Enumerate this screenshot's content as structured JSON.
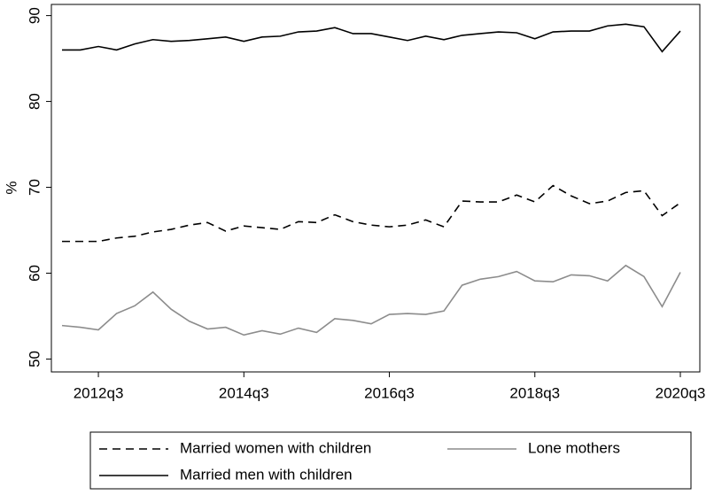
{
  "chart_data": {
    "type": "line",
    "y_label": "%",
    "categories": [
      null,
      null,
      "2012q3",
      null,
      null,
      null,
      null,
      null,
      null,
      null,
      "2014q3",
      null,
      null,
      null,
      null,
      null,
      null,
      null,
      "2016q3",
      null,
      null,
      null,
      null,
      null,
      null,
      null,
      "2018q3",
      null,
      null,
      null,
      null,
      null,
      null,
      null,
      "2020q3"
    ],
    "series": [
      {
        "name": "Married women with children",
        "color": "#000000",
        "line_style": "dashed",
        "values": [
          63.7,
          63.7,
          63.7,
          64.1,
          64.3,
          64.8,
          65.1,
          65.6,
          65.9,
          64.9,
          65.5,
          65.3,
          65.1,
          66.0,
          65.9,
          66.8,
          66.0,
          65.6,
          65.4,
          65.6,
          66.2,
          65.4,
          68.4,
          68.3,
          68.3,
          69.1,
          68.3,
          70.2,
          69.0,
          68.1,
          68.4,
          69.4,
          69.6,
          66.7,
          68.2
        ]
      },
      {
        "name": "Lone mothers",
        "color": "#8c8c8c",
        "line_style": "solid",
        "values": [
          53.9,
          53.7,
          53.4,
          55.3,
          56.2,
          57.8,
          55.8,
          54.4,
          53.5,
          53.7,
          52.8,
          53.3,
          52.9,
          53.6,
          53.1,
          54.7,
          54.5,
          54.1,
          55.2,
          55.3,
          55.2,
          55.6,
          58.6,
          59.3,
          59.6,
          60.2,
          59.1,
          59.0,
          59.8,
          59.7,
          59.1,
          60.9,
          59.6,
          56.1,
          60.1
        ]
      },
      {
        "name": "Married men with children",
        "color": "#000000",
        "line_style": "solid",
        "values": [
          86.0,
          86.0,
          86.4,
          86.0,
          86.7,
          87.2,
          87.0,
          87.1,
          87.3,
          87.5,
          87.0,
          87.5,
          87.6,
          88.1,
          88.2,
          88.6,
          87.9,
          87.9,
          87.5,
          87.1,
          87.6,
          87.2,
          87.7,
          87.9,
          88.1,
          88.0,
          87.3,
          88.1,
          88.2,
          88.2,
          88.8,
          89.0,
          88.7,
          85.8,
          88.2
        ]
      }
    ],
    "ylim": [
      48.5,
      91.3
    ],
    "yticks": [
      50,
      60,
      70,
      80,
      90
    ],
    "grid": false,
    "legend": "bottom"
  }
}
